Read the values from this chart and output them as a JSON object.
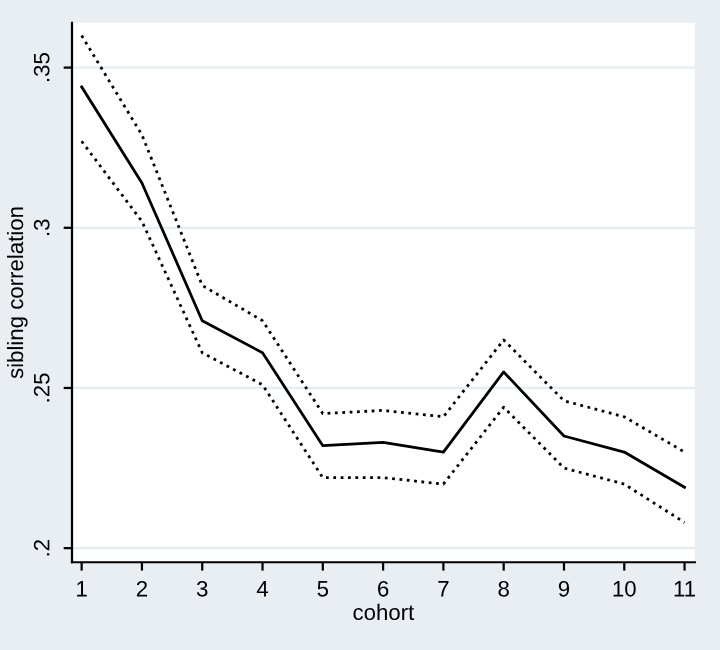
{
  "chart_data": {
    "type": "line",
    "xlabel": "cohort",
    "ylabel": "sibling correlation",
    "x": [
      1,
      2,
      3,
      4,
      5,
      6,
      7,
      8,
      9,
      10,
      11
    ],
    "series": [
      {
        "color": "#000000",
        "line_style": "solid",
        "values": [
          0.344,
          0.314,
          0.271,
          0.261,
          0.232,
          0.233,
          0.23,
          0.255,
          0.235,
          0.23,
          0.219
        ]
      },
      {
        "color": "#000000",
        "line_style": "dotted",
        "values": [
          0.36,
          0.329,
          0.282,
          0.271,
          0.242,
          0.243,
          0.241,
          0.265,
          0.246,
          0.241,
          0.23
        ]
      },
      {
        "color": "#000000",
        "line_style": "dotted",
        "values": [
          0.327,
          0.302,
          0.261,
          0.251,
          0.222,
          0.222,
          0.22,
          0.244,
          0.225,
          0.22,
          0.208
        ]
      }
    ],
    "xlim": [
      0.84,
      11.17
    ],
    "ylim": [
      0.1956,
      0.364
    ],
    "xticks": [
      1,
      2,
      3,
      4,
      5,
      6,
      7,
      8,
      9,
      10,
      11
    ],
    "yticks": [
      {
        "value": 0.2,
        "label": ".2"
      },
      {
        "value": 0.25,
        "label": ".25"
      },
      {
        "value": 0.3,
        "label": ".3"
      },
      {
        "value": 0.35,
        "label": ".35"
      }
    ],
    "grid": "y",
    "legend": false,
    "marker": "none"
  }
}
